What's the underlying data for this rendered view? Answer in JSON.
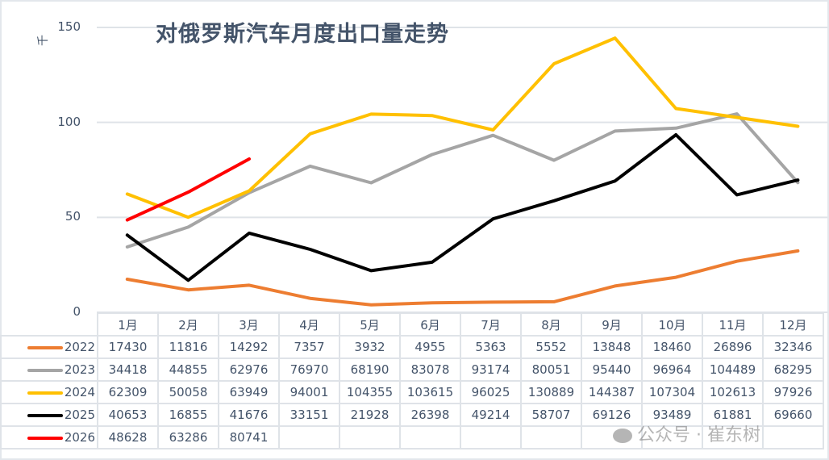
{
  "title": "对俄罗斯汽车月度出口量走势",
  "y_unit": "千",
  "y_ticks": [
    "150",
    "100",
    "50",
    "0"
  ],
  "months": [
    "1月",
    "2月",
    "3月",
    "4月",
    "5月",
    "6月",
    "7月",
    "8月",
    "9月",
    "10月",
    "11月",
    "12月"
  ],
  "series": [
    {
      "name": "2022",
      "color": "#ed7d31",
      "values": [
        "17430",
        "11816",
        "14292",
        "7357",
        "3932",
        "4955",
        "5363",
        "5552",
        "13848",
        "18460",
        "26896",
        "32346"
      ]
    },
    {
      "name": "2023",
      "color": "#a5a5a5",
      "values": [
        "34418",
        "44855",
        "62976",
        "76970",
        "68190",
        "83078",
        "93174",
        "80051",
        "95440",
        "96964",
        "104489",
        "68295"
      ]
    },
    {
      "name": "2024",
      "color": "#ffc000",
      "values": [
        "62309",
        "50058",
        "63949",
        "94001",
        "104355",
        "103615",
        "96025",
        "130889",
        "144387",
        "107304",
        "102613",
        "97926"
      ]
    },
    {
      "name": "2025",
      "color": "#000000",
      "values": [
        "40653",
        "16855",
        "41676",
        "33151",
        "21928",
        "26398",
        "49214",
        "58707",
        "69126",
        "93489",
        "61881",
        "69660"
      ]
    },
    {
      "name": "2026",
      "color": "#ff0000",
      "values": [
        "48628",
        "63286",
        "80741",
        "",
        "",
        "",
        "",
        "",
        "",
        "",
        "",
        ""
      ]
    }
  ],
  "watermark": "公众号 · 崔东树",
  "chart_data": {
    "type": "line",
    "title": "对俄罗斯汽车月度出口量走势",
    "xlabel": "",
    "ylabel": "千",
    "ylim": [
      0,
      150
    ],
    "y_ticks": [
      0,
      50,
      100,
      150
    ],
    "grid": true,
    "legend_position": "data-table",
    "categories": [
      "1月",
      "2月",
      "3月",
      "4月",
      "5月",
      "6月",
      "7月",
      "8月",
      "9月",
      "10月",
      "11月",
      "12月"
    ],
    "series": [
      {
        "name": "2022",
        "values": [
          17430,
          11816,
          14292,
          7357,
          3932,
          4955,
          5363,
          5552,
          13848,
          18460,
          26896,
          32346
        ]
      },
      {
        "name": "2023",
        "values": [
          34418,
          44855,
          62976,
          76970,
          68190,
          83078,
          93174,
          80051,
          95440,
          96964,
          104489,
          68295
        ]
      },
      {
        "name": "2024",
        "values": [
          62309,
          50058,
          63949,
          94001,
          104355,
          103615,
          96025,
          130889,
          144387,
          107304,
          102613,
          97926
        ]
      },
      {
        "name": "2025",
        "values": [
          40653,
          16855,
          41676,
          33151,
          21928,
          26398,
          49214,
          58707,
          69126,
          93489,
          61881,
          69660
        ]
      },
      {
        "name": "2026",
        "values": [
          48628,
          63286,
          80741,
          null,
          null,
          null,
          null,
          null,
          null,
          null,
          null,
          null
        ]
      }
    ]
  }
}
